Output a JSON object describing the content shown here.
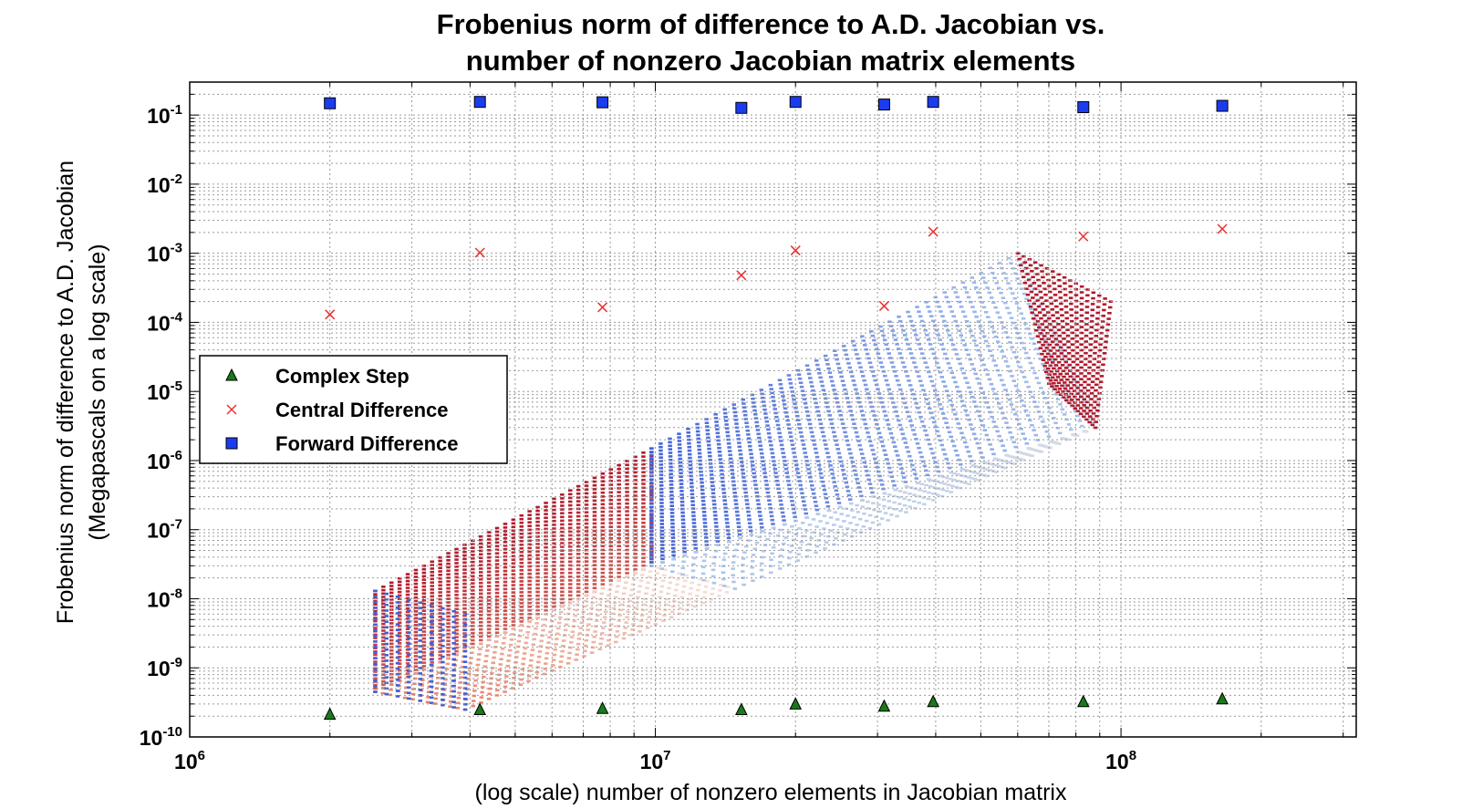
{
  "chart_data": {
    "type": "scatter",
    "title": [
      "Frobenius norm of difference to A.D. Jacobian vs.",
      "number of nonzero Jacobian matrix elements"
    ],
    "xlabel": "(log scale) number of nonzero elements in Jacobian matrix",
    "ylabel": [
      "Frobenius norm of difference to A.D. Jacobian",
      "(Megapascals on a log scale)"
    ],
    "xscale": "log",
    "yscale": "log",
    "xlim": [
      1000000,
      320000000
    ],
    "ylim": [
      1e-10,
      0.3
    ],
    "grid": true,
    "legend_position": "center-left",
    "x_ticks": [
      {
        "base": "10",
        "exp": "6",
        "value": 1000000
      },
      {
        "base": "10",
        "exp": "7",
        "value": 10000000
      },
      {
        "base": "10",
        "exp": "8",
        "value": 100000000
      }
    ],
    "y_ticks": [
      {
        "base": "10",
        "exp": "-1",
        "value": 0.1
      },
      {
        "base": "10",
        "exp": "-2",
        "value": 0.01
      },
      {
        "base": "10",
        "exp": "-3",
        "value": 0.001
      },
      {
        "base": "10",
        "exp": "-4",
        "value": 0.0001
      },
      {
        "base": "10",
        "exp": "-5",
        "value": 1e-05
      },
      {
        "base": "10",
        "exp": "-6",
        "value": 1e-06
      },
      {
        "base": "10",
        "exp": "-7",
        "value": 1e-07
      },
      {
        "base": "10",
        "exp": "-8",
        "value": 1e-08
      },
      {
        "base": "10",
        "exp": "-9",
        "value": 1e-09
      },
      {
        "base": "10",
        "exp": "-10",
        "value": 1e-10
      }
    ],
    "series": [
      {
        "name": "Complex Step",
        "marker": "triangle",
        "color": "#1a7a1a",
        "points": [
          {
            "x": 2000000,
            "y": 2.1e-10
          },
          {
            "x": 4200000,
            "y": 2.45e-10
          },
          {
            "x": 7700000,
            "y": 2.55e-10
          },
          {
            "x": 15300000,
            "y": 2.45e-10
          },
          {
            "x": 20000000,
            "y": 2.95e-10
          },
          {
            "x": 31000000,
            "y": 2.75e-10
          },
          {
            "x": 39500000,
            "y": 3.2e-10
          },
          {
            "x": 83000000,
            "y": 3.2e-10
          },
          {
            "x": 165000000,
            "y": 3.5e-10
          }
        ]
      },
      {
        "name": "Central Difference",
        "marker": "x",
        "color": "#e8312e",
        "points": [
          {
            "x": 2000000,
            "y": 0.00013
          },
          {
            "x": 4200000,
            "y": 0.00102
          },
          {
            "x": 7700000,
            "y": 0.000165
          },
          {
            "x": 15300000,
            "y": 0.00048
          },
          {
            "x": 20000000,
            "y": 0.0011
          },
          {
            "x": 31000000,
            "y": 0.000172
          },
          {
            "x": 39500000,
            "y": 0.00205
          },
          {
            "x": 83000000,
            "y": 0.00175
          },
          {
            "x": 165000000,
            "y": 0.00225
          }
        ]
      },
      {
        "name": "Forward Difference",
        "marker": "square",
        "color": "#1a3cf0",
        "points": [
          {
            "x": 2000000,
            "y": 0.148
          },
          {
            "x": 4200000,
            "y": 0.155
          },
          {
            "x": 7700000,
            "y": 0.153
          },
          {
            "x": 15300000,
            "y": 0.127
          },
          {
            "x": 20000000,
            "y": 0.155
          },
          {
            "x": 31000000,
            "y": 0.142
          },
          {
            "x": 39500000,
            "y": 0.155
          },
          {
            "x": 83000000,
            "y": 0.13
          },
          {
            "x": 165000000,
            "y": 0.136
          }
        ]
      }
    ],
    "background_cube": {
      "description_colors": {
        "red": "#b2182b",
        "salmon": "#e8826a",
        "pale": "#f4e0d8",
        "grey": "#d8dde6",
        "lightblue": "#a9c4ee",
        "blue": "#4060d8"
      },
      "corners": [
        {
          "x": 2500000,
          "y": 1.3e-08
        },
        {
          "x": 2500000,
          "y": 4.5e-10
        },
        {
          "x": 3900000,
          "y": 2.5e-10
        },
        {
          "x": 3900000,
          "y": 6e-09
        },
        {
          "x": 9800000,
          "y": 1.5e-06
        },
        {
          "x": 9800000,
          "y": 3e-08
        },
        {
          "x": 14800000,
          "y": 1.4e-08
        },
        {
          "x": 14800000,
          "y": 7e-07
        },
        {
          "x": 60000000,
          "y": 0.001
        },
        {
          "x": 58000000,
          "y": 0.00045
        },
        {
          "x": 88000000,
          "y": 3e-06
        },
        {
          "x": 95000000,
          "y": 0.0002
        },
        {
          "x": 70000000,
          "y": 1.3e-05
        }
      ]
    }
  }
}
